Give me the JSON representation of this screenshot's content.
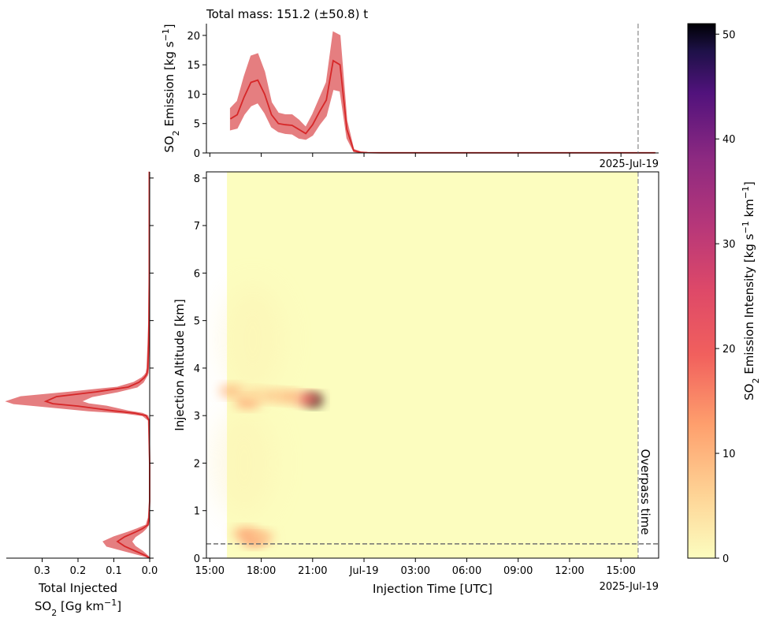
{
  "figure": {
    "title": "Total mass: 151.2 (±50.8) t",
    "overpass_label": "Overpass time",
    "date_label": "2025-Jul-19"
  },
  "chart_data": [
    {
      "id": "emission_timeseries",
      "type": "area",
      "ylabel": "SO2 Emission [kg s⁻¹]",
      "ylabel_parts": {
        "pre": "SO",
        "sub": "2",
        "mid": " Emission [kg s",
        "sup": "−1",
        "post": "]"
      },
      "ylim": [
        0,
        22
      ],
      "yticks": [
        0,
        5,
        10,
        15,
        20
      ],
      "x_unit": "hours since 2025-07-18 15:00 UTC",
      "xlim": [
        -0.2,
        26.2
      ],
      "mean": {
        "x": [
          1.2,
          1.6,
          2.0,
          2.4,
          2.8,
          3.2,
          3.6,
          4.0,
          4.4,
          4.8,
          5.2,
          5.6,
          6.0,
          6.4,
          6.8,
          7.2,
          7.6,
          8.0,
          8.4,
          8.8,
          9.2,
          10.0,
          12.0,
          26.0
        ],
        "y": [
          5.8,
          6.5,
          9.5,
          12.0,
          12.4,
          10.0,
          6.5,
          5.0,
          4.8,
          4.7,
          4.0,
          3.3,
          4.8,
          7.0,
          9.0,
          15.7,
          15.0,
          4.0,
          0.4,
          0.1,
          0.05,
          0.03,
          0.03,
          0.03
        ]
      },
      "lower": [
        3.9,
        4.2,
        6.5,
        8.0,
        8.5,
        6.8,
        4.4,
        3.6,
        3.3,
        3.2,
        2.5,
        2.3,
        3.0,
        4.8,
        6.3,
        10.8,
        10.5,
        2.5,
        0.2,
        0.05,
        0.02,
        0.02,
        0.02,
        0.02
      ],
      "upper": [
        7.6,
        8.8,
        13.0,
        16.5,
        16.9,
        13.8,
        8.6,
        6.8,
        6.5,
        6.5,
        5.6,
        4.4,
        6.6,
        9.3,
        12.0,
        20.6,
        20.0,
        5.5,
        0.6,
        0.2,
        0.08,
        0.05,
        0.05,
        0.05
      ],
      "overpass_x": 25.0,
      "colors": {
        "line": "#d62728",
        "band": "#e57e80",
        "overpass": "#a0a0a0"
      }
    },
    {
      "id": "injection_heatmap",
      "type": "heatmap",
      "xlabel": "Injection Time [UTC]",
      "ylabel": "Injection Altitude [km]",
      "x_ticks": [
        0,
        3,
        6,
        9,
        12,
        15,
        18,
        21,
        24
      ],
      "x_tick_labels": [
        "15:00",
        "18:00",
        "21:00",
        "Jul-19",
        "03:00",
        "06:00",
        "09:00",
        "12:00",
        "15:00"
      ],
      "xlim": [
        -0.2,
        26.2
      ],
      "ylim": [
        0,
        8.13
      ],
      "yticks": [
        0,
        1,
        2,
        3,
        4,
        5,
        6,
        7,
        8
      ],
      "data_extent": {
        "x": [
          1.0,
          25.0
        ],
        "y": [
          0,
          8.13
        ]
      },
      "background_value": 0,
      "hotspots": [
        {
          "x": 6.1,
          "y": 3.32,
          "value": 51
        },
        {
          "x": 5.7,
          "y": 3.35,
          "value": 20
        },
        {
          "x": 4.6,
          "y": 3.4,
          "value": 10
        },
        {
          "x": 3.6,
          "y": 3.42,
          "value": 8
        },
        {
          "x": 2.2,
          "y": 3.28,
          "value": 13
        },
        {
          "x": 1.3,
          "y": 3.52,
          "value": 10
        },
        {
          "x": 2.6,
          "y": 3.45,
          "value": 6
        },
        {
          "x": 2.1,
          "y": 0.52,
          "value": 12
        },
        {
          "x": 2.6,
          "y": 0.38,
          "value": 14
        },
        {
          "x": 3.0,
          "y": 0.45,
          "value": 8
        },
        {
          "x": 2.5,
          "y": 4.6,
          "value": 1
        },
        {
          "x": 2.0,
          "y": 2.0,
          "value": 0.7
        }
      ],
      "overpass_x": 25.0,
      "overpass_altitude": 0.3,
      "colors": {
        "overpass": "#a0a0a0",
        "altitude_line": "#707070"
      }
    },
    {
      "id": "vertical_profile",
      "type": "line",
      "xlabel_line1": "Total Injected",
      "xlabel_parts": {
        "pre": "SO",
        "sub": "2",
        "mid": " [Gg km",
        "sup": "−1",
        "post": "]"
      },
      "xlim": [
        0.4,
        0.0
      ],
      "xticks": [
        0.3,
        0.2,
        0.1,
        0.0
      ],
      "xtick_labels": [
        "0.3",
        "0.2",
        "0.1",
        "0.0"
      ],
      "ylim": [
        0,
        8.13
      ],
      "yticks": [
        0,
        1,
        2,
        3,
        4,
        5,
        6,
        7,
        8
      ],
      "altitude": [
        0.0,
        0.05,
        0.15,
        0.25,
        0.35,
        0.45,
        0.55,
        0.62,
        0.7,
        0.85,
        1.2,
        2.0,
        2.9,
        3.0,
        3.05,
        3.1,
        3.2,
        3.25,
        3.3,
        3.4,
        3.5,
        3.6,
        3.7,
        3.8,
        3.85,
        3.9,
        4.0,
        4.5,
        5.0,
        6.0,
        7.0,
        8.13
      ],
      "mean": [
        0.0,
        0.01,
        0.04,
        0.07,
        0.09,
        0.07,
        0.04,
        0.02,
        0.005,
        0.002,
        0.0,
        0.0,
        0.002,
        0.01,
        0.04,
        0.1,
        0.2,
        0.27,
        0.29,
        0.26,
        0.15,
        0.06,
        0.03,
        0.015,
        0.01,
        0.007,
        0.005,
        0.003,
        0.002,
        0.001,
        0.001,
        0.001
      ],
      "lower": [
        0.0,
        0.005,
        0.02,
        0.04,
        0.05,
        0.04,
        0.02,
        0.01,
        0.003,
        0.001,
        0.0,
        0.0,
        0.001,
        0.005,
        0.02,
        0.06,
        0.12,
        0.17,
        0.19,
        0.16,
        0.09,
        0.035,
        0.018,
        0.01,
        0.006,
        0.004,
        0.003,
        0.002,
        0.001,
        0.001,
        0.001,
        0.001
      ],
      "upper": [
        0.0,
        0.02,
        0.07,
        0.12,
        0.13,
        0.1,
        0.06,
        0.035,
        0.01,
        0.004,
        0.001,
        0.001,
        0.004,
        0.02,
        0.07,
        0.17,
        0.31,
        0.38,
        0.4,
        0.36,
        0.22,
        0.09,
        0.045,
        0.022,
        0.015,
        0.01,
        0.008,
        0.005,
        0.003,
        0.002,
        0.002,
        0.002
      ],
      "colors": {
        "line": "#d62728",
        "band": "#e57e80"
      }
    },
    {
      "id": "colorbar",
      "type": "heatmap",
      "label_parts": {
        "pre": "SO",
        "sub": "2",
        "mid": " Emission Intensity [kg s",
        "sup": "−1",
        "mid2": " km",
        "sup2": "−1",
        "post": "]"
      },
      "range": [
        0,
        51
      ],
      "ticks": [
        0,
        10,
        20,
        30,
        40,
        50
      ],
      "colormap": "magma_r"
    }
  ]
}
